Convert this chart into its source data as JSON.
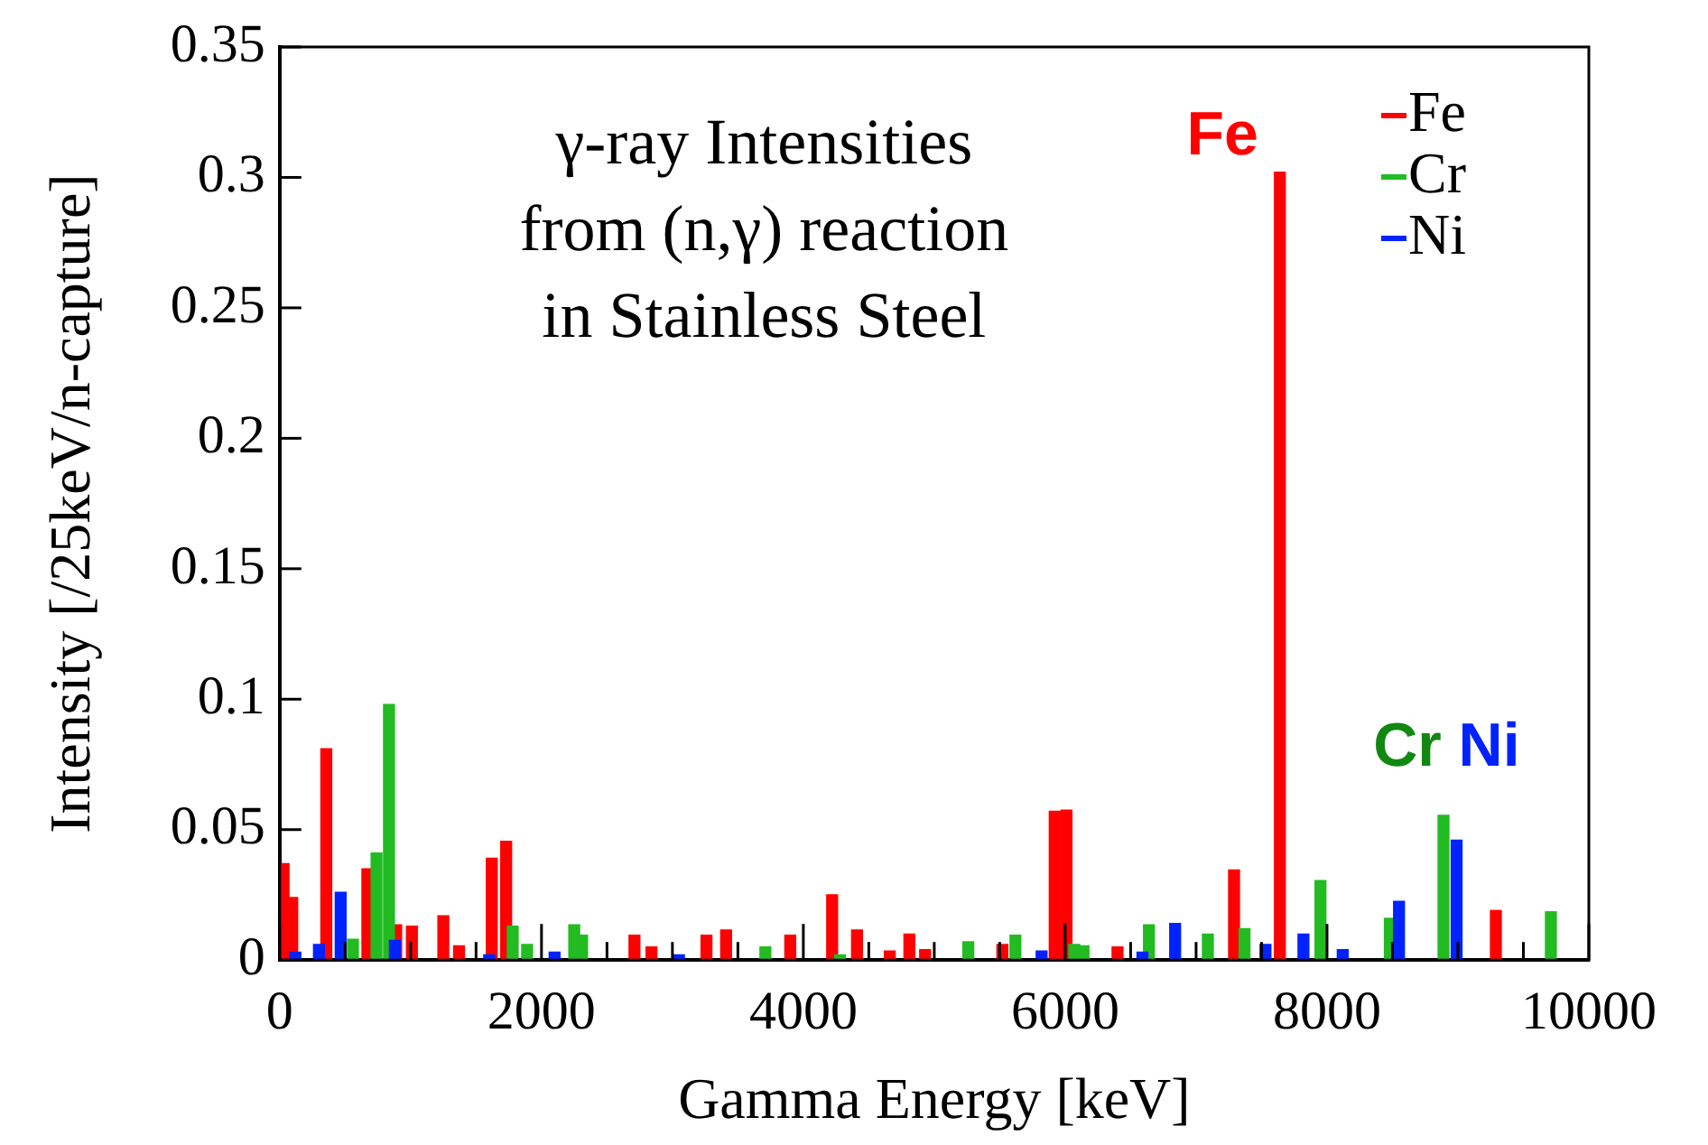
{
  "chart_data": {
    "type": "bar",
    "title": "γ-ray Intensities\nfrom (n,γ) reaction\nin Stainless Steel",
    "xlabel": "Gamma Energy [keV]",
    "ylabel": "Intensity [/25keV/n-capture]",
    "xlim": [
      0,
      10000
    ],
    "xticks": [
      0,
      {
        "value": 500,
        "label": null
      },
      {
        "value": 1000,
        "label": null
      },
      {
        "value": 1500,
        "label": null
      },
      2000,
      {
        "value": 2500,
        "label": null
      },
      {
        "value": 3000,
        "label": null
      },
      {
        "value": 3500,
        "label": null
      },
      4000,
      {
        "value": 4500,
        "label": null
      },
      {
        "value": 5000,
        "label": null
      },
      {
        "value": 5500,
        "label": null
      },
      6000,
      {
        "value": 6500,
        "label": null
      },
      {
        "value": 7000,
        "label": null
      },
      {
        "value": 7500,
        "label": null
      },
      8000,
      {
        "value": 8500,
        "label": null
      },
      {
        "value": 9000,
        "label": null
      },
      {
        "value": 9500,
        "label": null
      },
      10000
    ],
    "ylim": [
      0,
      0.35
    ],
    "yticks": [
      0,
      0.05,
      0.1,
      0.15,
      0.2,
      0.25,
      0.3,
      0.35
    ],
    "legend": "top right",
    "grid": false,
    "series": [
      {
        "name": "Fe",
        "color": "#ff0000",
        "x": [
          30,
          96,
          356,
          670,
          890,
          1010,
          1250,
          1370,
          1620,
          1730,
          2710,
          2840,
          3260,
          3410,
          3900,
          4220,
          4410,
          4660,
          4810,
          4930,
          5520,
          5920,
          6010,
          6400,
          7290,
          7640,
          9290
        ],
        "values": [
          0.037,
          0.024,
          0.081,
          0.035,
          0.0135,
          0.013,
          0.017,
          0.0055,
          0.039,
          0.0455,
          0.0095,
          0.005,
          0.0095,
          0.0115,
          0.0095,
          0.025,
          0.0115,
          0.0035,
          0.01,
          0.004,
          0.006,
          0.057,
          0.0575,
          0.005,
          0.0345,
          0.302,
          0.019
        ]
      },
      {
        "name": "Cr",
        "color": "#22bb22",
        "x": [
          560,
          740,
          835,
          1780,
          1890,
          2250,
          2310,
          3710,
          4280,
          5260,
          5620,
          6070,
          6140,
          6640,
          7090,
          7370,
          7950,
          8480,
          8890,
          9710
        ],
        "values": [
          0.008,
          0.041,
          0.098,
          0.013,
          0.006,
          0.0135,
          0.0095,
          0.005,
          0.002,
          0.007,
          0.0095,
          0.006,
          0.0055,
          0.0135,
          0.01,
          0.012,
          0.0305,
          0.016,
          0.0555,
          0.0185
        ]
      },
      {
        "name": "Ni",
        "color": "#0022ff",
        "x": [
          120,
          300,
          466,
          880,
          1600,
          2100,
          3050,
          5820,
          6590,
          6840,
          7530,
          7820,
          8120,
          8550,
          8990
        ],
        "values": [
          0.003,
          0.006,
          0.026,
          0.0075,
          0.002,
          0.003,
          0.002,
          0.0035,
          0.003,
          0.014,
          0.006,
          0.01,
          0.004,
          0.0225,
          0.046
        ]
      }
    ],
    "annotations": [
      {
        "text": "Fe",
        "x": 7640,
        "y": 0.302
      },
      {
        "text": "Cr",
        "x": 8890,
        "y": 0.0555
      },
      {
        "text": "Ni",
        "x": 8990,
        "y": 0.046
      }
    ]
  }
}
